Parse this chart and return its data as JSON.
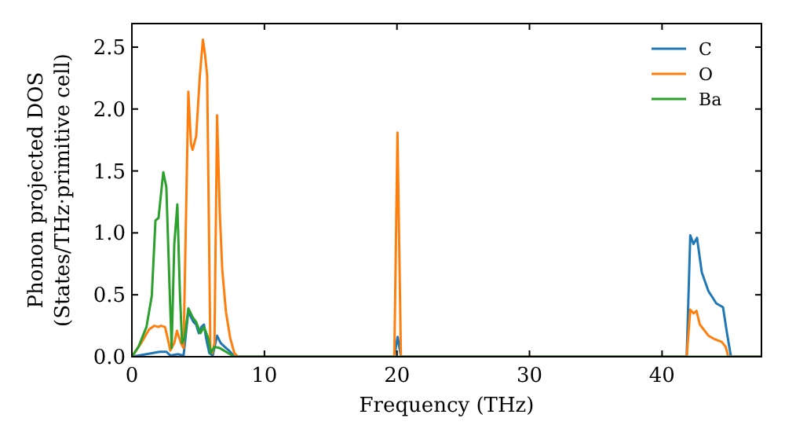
{
  "chart_data": {
    "type": "line",
    "xlabel": "Frequency (THz)",
    "ylabel": "Phonon projected DOS\n(States/THz·primitive cell)",
    "xlim": [
      0,
      47.5
    ],
    "ylim": [
      0,
      2.69
    ],
    "xticks": [
      0,
      10,
      20,
      30,
      40
    ],
    "yticks": [
      {
        "value": 0,
        "label": "0.0"
      },
      {
        "value": 0.5,
        "label": "0.5"
      },
      {
        "value": 1,
        "label": "1.0"
      },
      {
        "value": 1.5,
        "label": "1.5"
      },
      {
        "value": 2,
        "label": "2.0"
      },
      {
        "value": 2.5,
        "label": "2.5"
      }
    ],
    "grid": false,
    "legend": "top right",
    "marker": "none",
    "line_style": "solid",
    "series": [
      {
        "name": "C",
        "color": "#1f77b4",
        "x": [
          0,
          1.1,
          2.1,
          2.6,
          2.9,
          3.5,
          3.9,
          4.26,
          4.46,
          4.65,
          4.85,
          5.05,
          5.25,
          5.44,
          5.6,
          5.84,
          6.1,
          6.43,
          6.7,
          7.0,
          7.42,
          7.73,
          19.8,
          20.05,
          20.3,
          41.86,
          42.13,
          42.37,
          42.64,
          43.0,
          43.5,
          44.1,
          44.6,
          44.9,
          45.2,
          47.5
        ],
        "values": [
          0,
          0.02,
          0.04,
          0.04,
          0.01,
          0.02,
          0.01,
          0.37,
          0.32,
          0.28,
          0.26,
          0.19,
          0.24,
          0.26,
          0.15,
          0.03,
          0.01,
          0.17,
          0.11,
          0.08,
          0.04,
          0,
          0,
          0.16,
          0,
          0,
          0.98,
          0.91,
          0.96,
          0.68,
          0.53,
          0.43,
          0.4,
          0.19,
          0,
          0
        ]
      },
      {
        "name": "O",
        "color": "#ff7f0e",
        "x": [
          0,
          0.7,
          1.3,
          1.7,
          2.0,
          2.2,
          2.5,
          2.7,
          2.9,
          3.2,
          3.4,
          3.7,
          3.9,
          4.26,
          4.46,
          4.58,
          4.85,
          5.13,
          5.36,
          5.52,
          5.68,
          5.92,
          6.08,
          6.23,
          6.43,
          6.63,
          6.82,
          7.1,
          7.42,
          7.73,
          8.0,
          19.8,
          20.04,
          20.3,
          41.86,
          42.13,
          42.37,
          42.6,
          42.85,
          43.5,
          44.0,
          44.5,
          44.8,
          45.0,
          47.5
        ],
        "values": [
          0,
          0.11,
          0.22,
          0.25,
          0.24,
          0.25,
          0.24,
          0.15,
          0.05,
          0.11,
          0.21,
          0.11,
          0.07,
          2.14,
          1.72,
          1.67,
          1.78,
          2.27,
          2.56,
          2.44,
          2.27,
          0.07,
          0.03,
          0.11,
          1.95,
          1.17,
          0.7,
          0.36,
          0.15,
          0.03,
          0,
          0,
          1.81,
          0,
          0,
          0.38,
          0.35,
          0.37,
          0.26,
          0.17,
          0.14,
          0.12,
          0.08,
          0,
          0
        ]
      },
      {
        "name": "Ba",
        "color": "#2ca02c",
        "x": [
          0,
          0.5,
          1.1,
          1.5,
          1.78,
          2.01,
          2.37,
          2.6,
          2.84,
          3.0,
          3.2,
          3.43,
          3.63,
          3.79,
          3.98,
          4.26,
          4.58,
          4.85,
          5.17,
          5.44,
          5.76,
          5.96,
          6.23,
          6.63,
          7.1,
          7.73,
          47.5
        ],
        "values": [
          0,
          0.08,
          0.24,
          0.49,
          1.1,
          1.12,
          1.49,
          1.37,
          0.57,
          0.07,
          0.91,
          1.23,
          0.49,
          0.11,
          0.15,
          0.39,
          0.32,
          0.28,
          0.19,
          0.24,
          0.15,
          0.03,
          0.08,
          0.07,
          0.04,
          0,
          0
        ]
      }
    ]
  }
}
